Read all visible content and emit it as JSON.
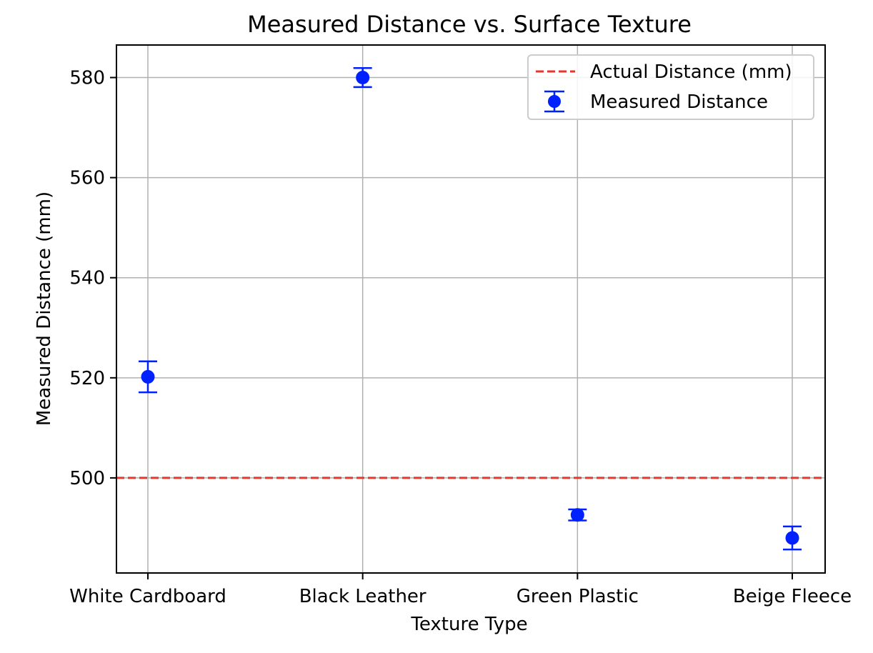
{
  "chart_data": {
    "type": "scatter",
    "title": "Measured Distance vs. Surface Texture",
    "xlabel": "Texture Type",
    "ylabel": "Measured Distance (mm)",
    "categories": [
      "White Cardboard",
      "Black Leather",
      "Green Plastic",
      "Beige Fleece"
    ],
    "ylim": [
      481,
      586.5
    ],
    "yticks": [
      500,
      520,
      540,
      560,
      580
    ],
    "grid": true,
    "legend_position": "top-right",
    "series": [
      {
        "name": "Actual Distance (mm)",
        "kind": "hline",
        "y": 500,
        "color": "#e8372a",
        "style": "dashed"
      },
      {
        "name": "Measured Distance",
        "kind": "errorbar",
        "color": "#0021ff",
        "values": [
          520.2,
          580.0,
          492.6,
          488.0
        ],
        "errors": [
          3.1,
          1.9,
          1.1,
          2.3
        ]
      }
    ]
  }
}
